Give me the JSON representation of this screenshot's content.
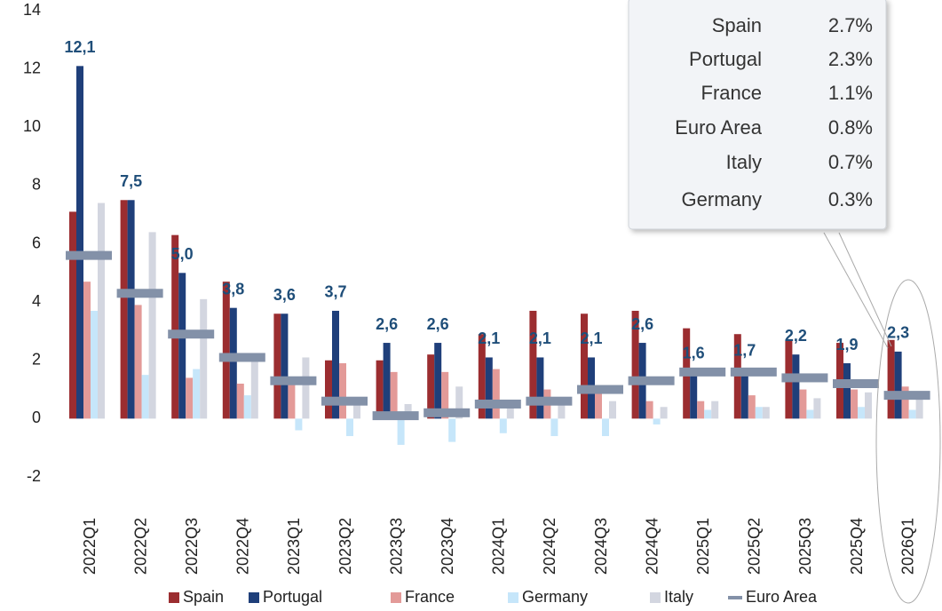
{
  "chart_data": {
    "type": "bar",
    "categories": [
      "2022Q1",
      "2022Q2",
      "2022Q3",
      "2022Q4",
      "2023Q1",
      "2023Q2",
      "2023Q3",
      "2023Q4",
      "2024Q1",
      "2024Q2",
      "2024Q3",
      "2024Q4",
      "2025Q1",
      "2025Q2",
      "2025Q3",
      "2025Q4",
      "2026Q1"
    ],
    "series": [
      {
        "name": "Spain",
        "color": "#9b2d30",
        "values": [
          7.1,
          7.5,
          6.3,
          4.7,
          3.6,
          2.0,
          2.0,
          2.2,
          2.9,
          3.7,
          3.6,
          3.7,
          3.1,
          2.9,
          2.7,
          2.6,
          2.7
        ]
      },
      {
        "name": "Portugal",
        "color": "#1f3f7a",
        "values": [
          12.1,
          7.5,
          5.0,
          3.8,
          3.6,
          3.7,
          2.6,
          2.6,
          2.1,
          2.1,
          2.1,
          2.6,
          1.6,
          1.7,
          2.2,
          1.9,
          2.3
        ],
        "value_labels": [
          "12,1",
          "7,5",
          "5,0",
          "3,8",
          "3,6",
          "3,7",
          "2,6",
          "2,6",
          "2,1",
          "2,1",
          "2,1",
          "2,6",
          "1,6",
          "1,7",
          "2,2",
          "1,9",
          "2,3"
        ]
      },
      {
        "name": "France",
        "color": "#e39a98",
        "values": [
          4.7,
          3.9,
          1.4,
          1.2,
          1.2,
          1.9,
          1.6,
          1.6,
          1.7,
          1.0,
          0.9,
          0.6,
          0.6,
          0.8,
          1.0,
          1.0,
          1.1
        ]
      },
      {
        "name": "Germany",
        "color": "#c6e6fa",
        "values": [
          3.7,
          1.5,
          1.7,
          0.8,
          -0.4,
          -0.6,
          -0.9,
          -0.8,
          -0.5,
          -0.6,
          -0.6,
          -0.2,
          0.3,
          0.4,
          0.3,
          0.4,
          0.3
        ]
      },
      {
        "name": "Italy",
        "color": "#d3d6e0",
        "values": [
          7.4,
          6.4,
          4.1,
          2.0,
          2.1,
          0.5,
          0.5,
          1.1,
          0.4,
          0.5,
          0.6,
          0.4,
          0.6,
          0.4,
          0.7,
          0.9,
          0.7
        ]
      },
      {
        "name": "Euro Area",
        "color": "#8391a8",
        "marker": "dash",
        "values": [
          5.6,
          4.3,
          2.9,
          2.1,
          1.3,
          0.6,
          0.1,
          0.2,
          0.5,
          0.6,
          1.0,
          1.3,
          1.6,
          1.6,
          1.4,
          1.2,
          0.8
        ]
      }
    ],
    "ylim": [
      -2,
      14
    ],
    "yticks": [
      -2,
      0,
      2,
      4,
      6,
      8,
      10,
      12,
      14
    ],
    "grid": false,
    "legend": "bottom",
    "table": {
      "rows": [
        [
          "Spain",
          "2.7%"
        ],
        [
          "Portugal",
          "2.3%"
        ],
        [
          "France",
          "1.1%"
        ],
        [
          "Euro Area",
          "0.8%"
        ],
        [
          "Italy",
          "0.7%"
        ],
        [
          "Germany",
          "0.3%"
        ]
      ]
    }
  }
}
